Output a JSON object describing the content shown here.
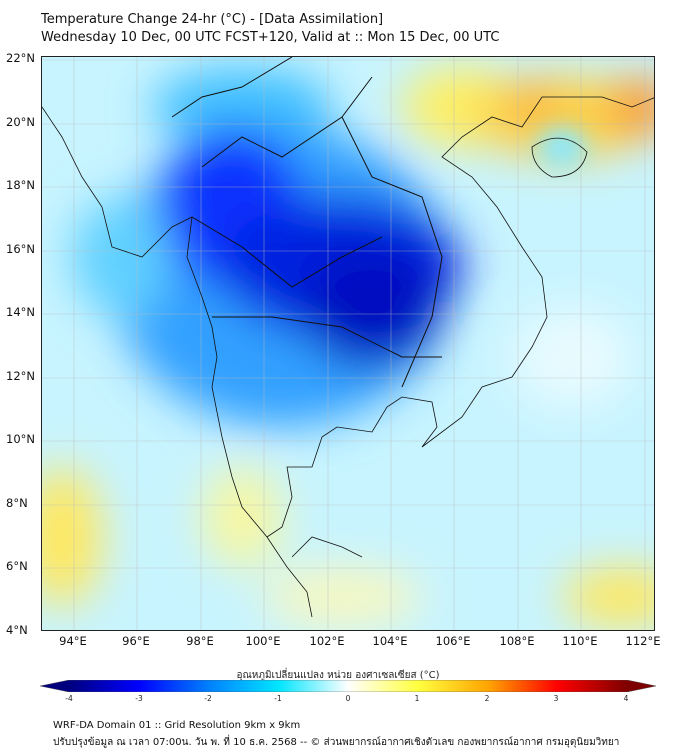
{
  "title": {
    "line1": "Temperature Change 24-hr (°C) - [Data Assimilation]",
    "line2": "Wednesday 10 Dec, 00 UTC FCST+120, Valid at :: Mon 15 Dec, 00 UTC"
  },
  "map": {
    "lat_ticks": [
      "22°N",
      "20°N",
      "18°N",
      "16°N",
      "14°N",
      "12°N",
      "10°N",
      "8°N",
      "6°N",
      "4°N"
    ],
    "lon_ticks": [
      "94°E",
      "96°E",
      "98°E",
      "100°E",
      "102°E",
      "104°E",
      "106°E",
      "108°E",
      "110°E",
      "112°E"
    ],
    "extent": {
      "lon_min": 93,
      "lon_max": 112.4,
      "lat_min": 4,
      "lat_max": 22.1
    }
  },
  "colorbar": {
    "label": "อุณหภูมิเปลี่ยนแปลง หน่วย องศาเซลเซียส (°C)",
    "ticks": [
      "-4",
      "-3",
      "-2",
      "-1",
      "0",
      "1",
      "2",
      "3",
      "4"
    ],
    "range": [
      -4,
      4
    ],
    "colors": [
      "#00007f",
      "#0000ff",
      "#0080ff",
      "#00e5ff",
      "#ffffff",
      "#ffff40",
      "#ffa500",
      "#ff0000",
      "#7f0000"
    ]
  },
  "footer": {
    "line1": "WRF-DA Domain 01 :: Grid Resolution 9km x 9km",
    "line2": "ปรับปรุงข้อมูล ณ เวลา 07:00น. วัน พ. ที่ 10 ธ.ค. 2568 -- © ส่วนพยากรณ์อากาศเชิงตัวเลข กองพยากรณ์อากาศ กรมอุตุนิยมวิทยา"
  }
}
